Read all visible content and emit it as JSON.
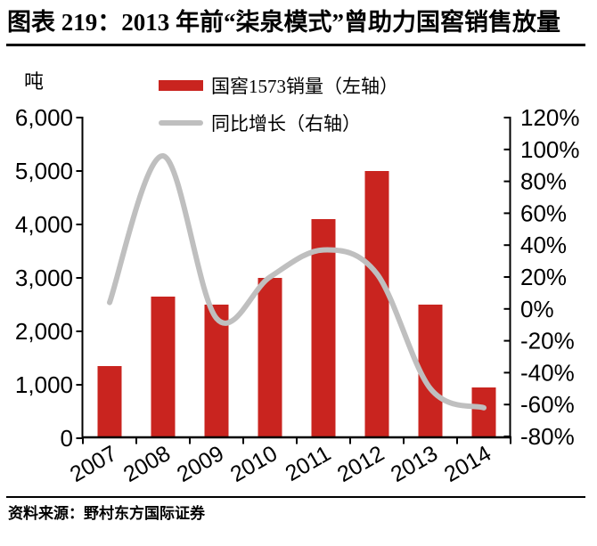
{
  "header": {
    "title": "图表 219：2013 年前“柒泉模式”曾助力国窖销售放量"
  },
  "footer": {
    "source": "资料来源：野村东方国际证券"
  },
  "chart_data": {
    "type": "combo",
    "title": "图表 219：2013 年前“柒泉模式”曾助力国窖销售放量",
    "categories": [
      "2007",
      "2008",
      "2009",
      "2010",
      "2011",
      "2012",
      "2013",
      "2014"
    ],
    "series": [
      {
        "name": "国窖1573销量（左轴）",
        "type": "bar",
        "axis": "left",
        "color": "#C9241F",
        "values": [
          1350,
          2650,
          2500,
          3000,
          4100,
          5000,
          2500,
          950
        ]
      },
      {
        "name": "同比增长（右轴）",
        "type": "line",
        "axis": "right",
        "color": "#BFBFBF",
        "unit": "%",
        "values": [
          4,
          96,
          -6,
          20,
          37,
          22,
          -50,
          -62
        ]
      }
    ],
    "left_axis": {
      "unit": "吨",
      "min": 0,
      "max": 6000,
      "tick_values": [
        6000,
        5000,
        4000,
        3000,
        2000,
        1000,
        0
      ],
      "tick_labels": [
        "6,000",
        "5,000",
        "4,000",
        "3,000",
        "2,000",
        "1,000",
        "0"
      ]
    },
    "right_axis": {
      "min": -80,
      "max": 120,
      "tick_values": [
        120,
        100,
        80,
        60,
        40,
        20,
        0,
        -20,
        -40,
        -60,
        -80
      ],
      "tick_labels": [
        "120%",
        "100%",
        "80%",
        "60%",
        "40%",
        "20%",
        "0%",
        "-20%",
        "-40%",
        "-60%",
        "-80%"
      ]
    },
    "legend_position": "top-center",
    "grid": false,
    "line_smooth": true,
    "axis_color": "#000000"
  }
}
